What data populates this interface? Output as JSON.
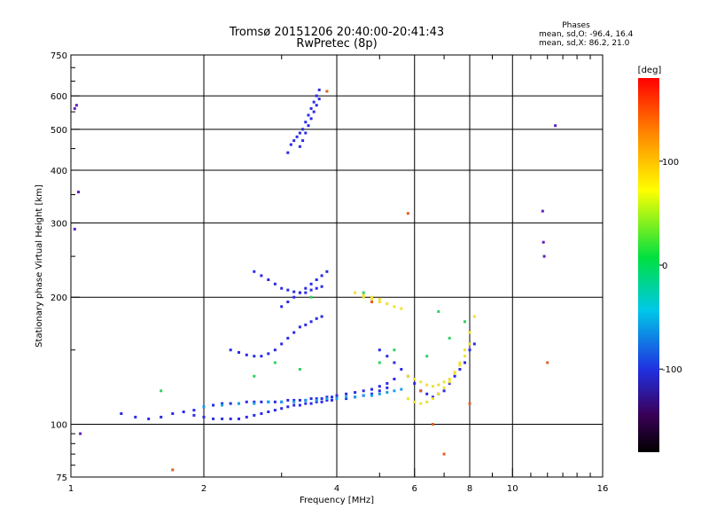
{
  "chart_data": {
    "type": "scatter",
    "title": "Tromsø 20151206 20:40:00-20:41:43",
    "subtitle": "RwPretec (8p)",
    "xlabel": "Frequency [MHz]",
    "ylabel": "Stationary phase Virtual Height [km]",
    "x_scale": "log",
    "y_scale": "log",
    "xlim": [
      1,
      16
    ],
    "ylim": [
      75,
      750
    ],
    "x_major_ticks": [
      1,
      2,
      4,
      6,
      8,
      10,
      16
    ],
    "x_minor_ticks": [
      3,
      5,
      7,
      9,
      11,
      12,
      13,
      14,
      15
    ],
    "x_tick_labels": [
      "1",
      "2",
      "4",
      "6",
      "8",
      "10",
      "16"
    ],
    "y_ticks": [
      75,
      100,
      200,
      300,
      400,
      500,
      600,
      750
    ],
    "y_tick_labels": [
      "75",
      "100",
      "200",
      "300",
      "400",
      "500",
      "600",
      "750"
    ],
    "grid": true,
    "stats": {
      "heading": "Phases",
      "line1": "mean, sd,O: -96.4, 16.4",
      "line2": "mean, sd,X:  86.2, 21.0"
    },
    "colorbar": {
      "label": "[deg]",
      "range": [
        -180,
        180
      ],
      "ticks": [
        100,
        0,
        -100
      ],
      "tick_labels": [
        "100",
        "0",
        "-100"
      ]
    },
    "series": [
      {
        "color": "#2a2ae8",
        "description": "O-mode echoes",
        "x": [
          1.3,
          1.4,
          1.5,
          1.6,
          1.7,
          1.8,
          1.9,
          2.0,
          2.1,
          2.2,
          2.3,
          2.4,
          2.5,
          2.6,
          2.7,
          2.8,
          2.9,
          3.0,
          3.1,
          3.2,
          3.3,
          3.4,
          3.5,
          3.6,
          3.7,
          3.8,
          3.9,
          4.0,
          4.2,
          4.4,
          4.6,
          4.8,
          5.0,
          5.2,
          5.4,
          1.9,
          2.0,
          2.1,
          2.2,
          2.3,
          2.4,
          2.5,
          2.6,
          2.7,
          2.8,
          2.9,
          3.0,
          3.1,
          3.2,
          3.3,
          3.4,
          3.5,
          3.6,
          3.7,
          3.8,
          3.9,
          4.0,
          4.2,
          4.4,
          4.6,
          4.8,
          5.0,
          5.2,
          2.3,
          2.4,
          2.5,
          2.6,
          2.7,
          2.8,
          2.9,
          3.0,
          3.1,
          3.2,
          3.3,
          3.4,
          3.5,
          3.6,
          3.7,
          2.6,
          2.7,
          2.8,
          2.9,
          3.0,
          3.1,
          3.2,
          3.3,
          3.4,
          3.5,
          3.6,
          3.7,
          3.0,
          3.1,
          3.2,
          3.3,
          3.4,
          3.5,
          3.6,
          3.7,
          3.8,
          3.1,
          3.15,
          3.2,
          3.25,
          3.3,
          3.35,
          3.4,
          3.45,
          3.5,
          3.55,
          3.6,
          3.65,
          3.3,
          3.35,
          3.4,
          3.45,
          3.5,
          3.55,
          3.6,
          3.65,
          5.0,
          5.2,
          5.4,
          5.6,
          5.8,
          6.0,
          6.2,
          6.4,
          6.6,
          6.8,
          7.0,
          7.2,
          7.4,
          7.6,
          7.8,
          8.0,
          8.2
        ],
        "y": [
          106,
          104,
          103,
          104,
          106,
          107,
          108,
          110,
          111,
          112,
          112,
          112,
          113,
          113,
          113,
          113,
          113,
          113,
          114,
          114,
          114,
          114,
          115,
          115,
          115,
          116,
          116,
          117,
          118,
          119,
          120,
          121,
          123,
          125,
          128,
          105,
          104,
          103,
          103,
          103,
          103,
          104,
          105,
          106,
          107,
          108,
          109,
          110,
          111,
          111,
          112,
          112,
          113,
          113,
          114,
          114,
          115,
          115,
          116,
          117,
          118,
          120,
          122,
          150,
          148,
          146,
          145,
          145,
          147,
          150,
          155,
          160,
          165,
          170,
          172,
          175,
          178,
          180,
          230,
          225,
          220,
          215,
          210,
          208,
          206,
          205,
          205,
          208,
          210,
          212,
          190,
          195,
          200,
          205,
          210,
          215,
          220,
          225,
          230,
          440,
          460,
          470,
          480,
          490,
          500,
          520,
          540,
          560,
          580,
          600,
          620,
          455,
          470,
          490,
          510,
          530,
          550,
          570,
          590,
          150,
          145,
          140,
          135,
          130,
          125,
          120,
          118,
          116,
          118,
          120,
          125,
          130,
          135,
          140,
          150,
          155
        ]
      },
      {
        "color": "#1aa0e8",
        "description": "low-frequency trace (cyan)",
        "x": [
          2.0,
          2.2,
          2.4,
          2.6,
          2.8,
          3.0,
          3.2,
          3.4,
          3.6,
          3.8,
          4.0,
          4.2,
          4.4,
          4.6,
          4.8,
          5.0,
          5.2,
          5.4,
          5.6
        ],
        "y": [
          110,
          111,
          112,
          112,
          113,
          113,
          113,
          114,
          114,
          115,
          115,
          116,
          116,
          117,
          117,
          118,
          119,
          120,
          121
        ]
      },
      {
        "color": "#f0e030",
        "description": "X-mode echoes",
        "x": [
          4.6,
          4.8,
          5.0,
          5.2,
          5.4,
          5.6,
          5.8,
          6.0,
          6.2,
          6.4,
          6.6,
          6.8,
          7.0,
          7.2,
          7.4,
          7.6,
          7.8,
          8.0,
          8.2,
          5.8,
          6.0,
          6.2,
          6.4,
          6.6,
          6.8,
          7.0,
          7.2,
          7.4,
          7.6,
          7.8,
          8.0,
          4.4,
          4.6,
          4.8,
          5.0
        ],
        "y": [
          200,
          198,
          195,
          193,
          190,
          188,
          115,
          113,
          112,
          113,
          115,
          118,
          122,
          126,
          132,
          140,
          150,
          165,
          180,
          130,
          128,
          126,
          124,
          123,
          124,
          126,
          128,
          133,
          138,
          145,
          155,
          205,
          202,
          200,
          198
        ]
      },
      {
        "color": "#30d060",
        "description": "scattered green echoes",
        "x": [
          1.6,
          2.6,
          2.9,
          3.3,
          3.5,
          4.6,
          5.0,
          5.4,
          6.4,
          6.8,
          7.2,
          7.8
        ],
        "y": [
          120,
          130,
          140,
          135,
          200,
          205,
          140,
          150,
          145,
          185,
          160,
          175
        ]
      },
      {
        "color": "#e06020",
        "description": "scattered orange/red echoes",
        "x": [
          3.8,
          4.8,
          5.8,
          6.2,
          6.6,
          7.0,
          8.0,
          12.0,
          1.7
        ],
        "y": [
          615,
          195,
          316,
          120,
          100,
          85,
          112,
          140,
          78
        ]
      },
      {
        "color": "#6020c0",
        "description": "sparse purple echoes",
        "x": [
          1.02,
          1.03,
          1.04,
          1.02,
          1.05,
          11.7,
          11.75,
          11.8,
          12.5
        ],
        "y": [
          560,
          570,
          355,
          290,
          95,
          320,
          270,
          250,
          510
        ]
      }
    ]
  }
}
